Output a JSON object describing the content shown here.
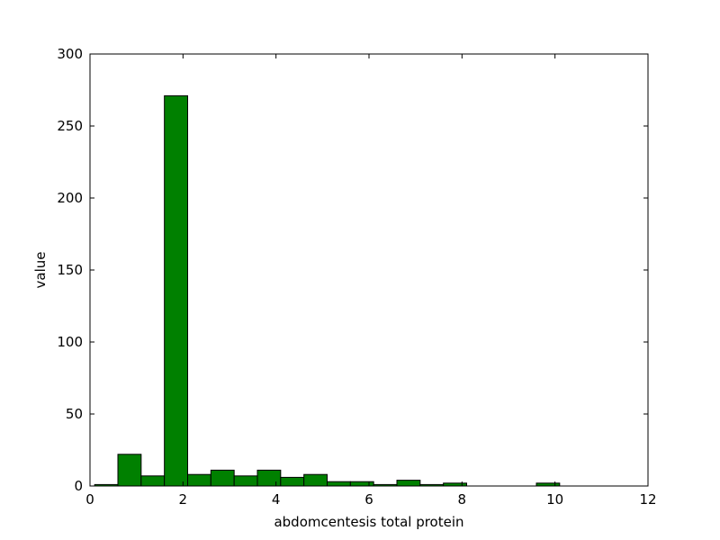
{
  "chart_data": {
    "type": "bar",
    "title": "",
    "xlabel": "abdomcentesis total protein",
    "ylabel": "value",
    "xlim": [
      0,
      12
    ],
    "ylim": [
      0,
      300
    ],
    "xticks": [
      "0",
      "2",
      "4",
      "6",
      "8",
      "10",
      "12"
    ],
    "yticks": [
      "0",
      "50",
      "100",
      "150",
      "200",
      "250",
      "300"
    ],
    "grid": false,
    "legend": "none",
    "bar_color": "#008000",
    "bar_edge_color": "#000000",
    "bins": [
      {
        "x0": 0.1,
        "x1": 0.6,
        "value": 1
      },
      {
        "x0": 0.6,
        "x1": 1.1,
        "value": 22
      },
      {
        "x0": 1.1,
        "x1": 1.6,
        "value": 7
      },
      {
        "x0": 1.6,
        "x1": 2.1,
        "value": 271
      },
      {
        "x0": 2.1,
        "x1": 2.6,
        "value": 8
      },
      {
        "x0": 2.6,
        "x1": 3.1,
        "value": 11
      },
      {
        "x0": 3.1,
        "x1": 3.6,
        "value": 7
      },
      {
        "x0": 3.6,
        "x1": 4.1,
        "value": 11
      },
      {
        "x0": 4.1,
        "x1": 4.6,
        "value": 6
      },
      {
        "x0": 4.6,
        "x1": 5.1,
        "value": 8
      },
      {
        "x0": 5.1,
        "x1": 5.6,
        "value": 3
      },
      {
        "x0": 5.6,
        "x1": 6.1,
        "value": 3
      },
      {
        "x0": 6.1,
        "x1": 6.6,
        "value": 1
      },
      {
        "x0": 6.6,
        "x1": 7.1,
        "value": 4
      },
      {
        "x0": 7.1,
        "x1": 7.6,
        "value": 1
      },
      {
        "x0": 7.6,
        "x1": 8.1,
        "value": 2
      },
      {
        "x0": 8.1,
        "x1": 8.6,
        "value": 0
      },
      {
        "x0": 8.6,
        "x1": 9.1,
        "value": 0
      },
      {
        "x0": 9.1,
        "x1": 9.6,
        "value": 0
      },
      {
        "x0": 9.6,
        "x1": 10.1,
        "value": 2
      }
    ]
  }
}
